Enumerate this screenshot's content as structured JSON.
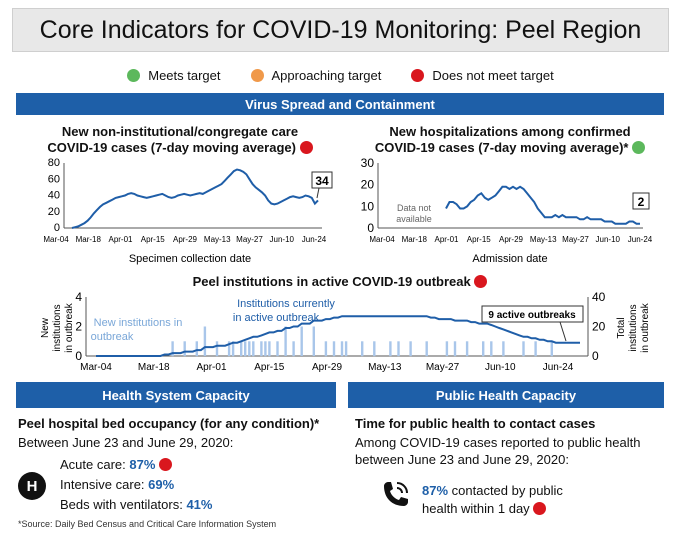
{
  "title": "Core Indicators for COVID-19 Monitoring: Peel Region",
  "legend": [
    {
      "label": "Meets target",
      "color": "#5cb85c"
    },
    {
      "label": "Approaching target",
      "color": "#f0994a"
    },
    {
      "label": "Does not meet target",
      "color": "#d9171e"
    }
  ],
  "sections": {
    "virus": "Virus Spread and Containment",
    "health": "Health System Capacity",
    "public": "Public Health Capacity"
  },
  "chart_data": [
    {
      "type": "line",
      "title_line1": "New non-institutional/congregate care",
      "title_line2": "COVID-19 cases (7-day moving average)",
      "status_color": "#d9171e",
      "xlabel": "Specimen collection date",
      "x_ticks": [
        "Mar-04",
        "Mar-18",
        "Apr-01",
        "Apr-15",
        "Apr-29",
        "May-13",
        "May-27",
        "Jun-10",
        "Jun-24"
      ],
      "y_ticks": [
        0,
        20,
        40,
        60,
        80
      ],
      "ylim": [
        0,
        80
      ],
      "end_label": "34",
      "series": [
        {
          "values": [
            0,
            1,
            2,
            4,
            6,
            9,
            13,
            18,
            22,
            26,
            29,
            31,
            33,
            35,
            37,
            38,
            39,
            40,
            42,
            43,
            42,
            40,
            39,
            38,
            37,
            38,
            39,
            40,
            41,
            42,
            40,
            38,
            37,
            38,
            40,
            41,
            42,
            41,
            40,
            41,
            42,
            43,
            42,
            44,
            46,
            48,
            50,
            52,
            54,
            58,
            62,
            66,
            70,
            72,
            71,
            69,
            66,
            60,
            54,
            50,
            47,
            44,
            40,
            34,
            30,
            29,
            30,
            32,
            34,
            36,
            38,
            39,
            38,
            37,
            38,
            40,
            39,
            37,
            30,
            34
          ]
        }
      ]
    },
    {
      "type": "line",
      "title_line1": "New hospitalizations among confirmed",
      "title_line2": "COVID-19 cases (7-day moving average)*",
      "status_color": "#5cb85c",
      "xlabel": "Admission date",
      "x_ticks": [
        "Mar-04",
        "Mar-18",
        "Apr-01",
        "Apr-15",
        "Apr-29",
        "May-13",
        "May-27",
        "Jun-10",
        "Jun-24"
      ],
      "y_ticks": [
        0,
        10,
        20,
        30
      ],
      "ylim": [
        0,
        30
      ],
      "note": "Data not available",
      "end_label": "2",
      "series": [
        {
          "values": [
            9,
            12,
            12,
            11,
            9,
            9,
            10,
            12,
            13,
            15,
            16,
            14,
            13,
            14,
            15,
            17,
            19,
            19,
            18,
            19,
            18,
            19,
            18,
            16,
            14,
            12,
            9,
            7,
            5,
            5,
            5,
            6,
            5,
            6,
            5,
            5,
            5,
            5,
            4,
            4,
            5,
            4,
            4,
            4,
            4,
            3,
            3,
            3,
            2,
            2,
            2,
            2,
            3,
            3,
            2,
            2
          ]
        }
      ]
    },
    {
      "type": "bar",
      "title": "Peel institutions in active COVID-19 outbreak",
      "status_color": "#d9171e",
      "left_axis_label": "New institutions in outbreak",
      "right_axis_label": "Total institutions in outbreak",
      "x_ticks": [
        "Mar-04",
        "Mar-18",
        "Apr-01",
        "Apr-15",
        "Apr-29",
        "May-13",
        "May-27",
        "Jun-10",
        "Jun-24"
      ],
      "left_ticks": [
        0,
        2,
        4
      ],
      "right_ticks": [
        0,
        20,
        40
      ],
      "ylim_left": [
        0,
        4
      ],
      "ylim_right": [
        0,
        40
      ],
      "bar_series_label": "New institutions in outbreak",
      "line_series_label": "Institutions currently in active outbreak",
      "end_label": "9 active outbreaks",
      "bars": [
        0,
        0,
        0,
        0,
        0,
        0,
        0,
        0,
        0,
        0,
        0,
        0,
        0,
        0,
        0,
        0,
        0,
        0,
        0,
        1,
        0,
        0,
        1,
        0,
        0,
        1,
        0,
        2,
        0,
        0,
        1,
        0,
        0,
        1,
        1,
        0,
        1,
        1,
        1,
        1,
        0,
        1,
        1,
        1,
        0,
        1,
        0,
        2,
        0,
        1,
        0,
        2,
        0,
        0,
        2,
        0,
        0,
        1,
        0,
        1,
        0,
        1,
        1,
        0,
        0,
        0,
        1,
        0,
        0,
        1,
        0,
        0,
        0,
        1,
        0,
        1,
        0,
        0,
        1,
        0,
        0,
        0,
        1,
        0,
        0,
        0,
        0,
        1,
        0,
        1,
        0,
        0,
        1,
        0,
        0,
        0,
        1,
        0,
        1,
        0,
        0,
        1,
        0,
        0,
        0,
        0,
        1,
        0,
        0,
        1,
        0,
        0,
        0,
        1,
        0,
        0,
        0,
        0,
        0,
        0,
        0
      ],
      "totals": [
        0,
        0,
        0,
        0,
        0,
        0,
        0,
        0,
        0,
        0,
        0,
        0,
        0,
        0,
        0,
        0,
        0,
        1,
        1,
        2,
        2,
        2,
        3,
        3,
        3,
        4,
        4,
        6,
        6,
        6,
        7,
        7,
        7,
        8,
        9,
        9,
        10,
        11,
        12,
        13,
        13,
        14,
        15,
        16,
        16,
        17,
        17,
        19,
        19,
        20,
        20,
        22,
        22,
        22,
        24,
        24,
        24,
        25,
        25,
        26,
        26,
        27,
        27,
        27,
        27,
        27,
        27,
        27,
        27,
        27,
        27,
        27,
        27,
        27,
        27,
        27,
        27,
        27,
        27,
        27,
        27,
        27,
        27,
        26,
        26,
        25,
        25,
        25,
        25,
        24,
        24,
        24,
        24,
        23,
        23,
        22,
        22,
        22,
        21,
        20,
        19,
        18,
        17,
        16,
        15,
        14,
        13,
        13,
        12,
        12,
        11,
        11,
        10,
        10,
        9,
        9,
        9,
        9,
        9,
        9,
        9
      ]
    }
  ],
  "health": {
    "heading": "Peel hospital bed occupancy (for any condition)*",
    "between": "Between June 23 and June 29, 2020:",
    "icon_letter": "H",
    "rows": [
      {
        "label": "Acute care: ",
        "value": "87%",
        "status_color": "#d9171e"
      },
      {
        "label": "Intensive care: ",
        "value": "69%"
      },
      {
        "label": "Beds with ventilators: ",
        "value": "41%"
      }
    ]
  },
  "public": {
    "heading": "Time for public health to contact cases",
    "line1": "Among COVID-19 cases reported to public health",
    "line2": "between June 23 and June 29, 2020:",
    "value": "87%",
    "text1": " contacted by public",
    "text2": "health within 1 day",
    "status_color": "#d9171e"
  },
  "source": "*Source: Daily Bed Census and Critical Care Information System"
}
